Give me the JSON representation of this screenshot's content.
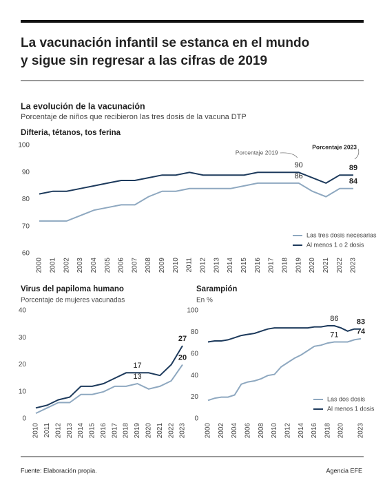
{
  "header": {
    "title_lines": [
      "La vacunación infantil se estanca en el mundo",
      "y sigue sin regresar a las cifras de 2019"
    ],
    "section_title": "La evolución de la vacunación",
    "section_subtitle": "Porcentaje de niños que recibieron las tres dosis de la vacuna DTP"
  },
  "chart_data": [
    {
      "type": "line",
      "title": "Difteria, tétanos, tos ferina",
      "x": [
        2000,
        2001,
        2002,
        2003,
        2004,
        2005,
        2006,
        2007,
        2008,
        2009,
        2010,
        2011,
        2012,
        2013,
        2014,
        2015,
        2016,
        2017,
        2018,
        2019,
        2020,
        2021,
        2022,
        2023
      ],
      "xlim": [
        2000,
        2023
      ],
      "xticks": [
        2000,
        2001,
        2002,
        2003,
        2004,
        2005,
        2006,
        2007,
        2008,
        2009,
        2010,
        2011,
        2012,
        2013,
        2014,
        2015,
        2016,
        2017,
        2018,
        2019,
        2020,
        2021,
        2022,
        2023
      ],
      "ylim": [
        60,
        100
      ],
      "yticks": [
        60,
        70,
        80,
        90,
        100
      ],
      "grid": false,
      "legend": "lower-right",
      "annotations": [
        "Porcentaje 2019",
        "Porcentaje 2023"
      ],
      "series": [
        {
          "name": "Las tres dosis necesarias",
          "color": "#8ea8c0",
          "values": [
            72,
            72,
            72,
            74,
            76,
            77,
            78,
            78,
            81,
            83,
            83,
            84,
            84,
            84,
            84,
            85,
            86,
            86,
            86,
            86,
            83,
            81,
            84,
            84
          ]
        },
        {
          "name": "Al menos 1 o 2 dosis",
          "color": "#1d3a5c",
          "values": [
            82,
            83,
            83,
            84,
            85,
            86,
            87,
            87,
            88,
            89,
            89,
            90,
            89,
            89,
            89,
            89,
            90,
            90,
            90,
            90,
            88,
            86,
            89,
            89
          ]
        }
      ]
    },
    {
      "type": "line",
      "title": "Virus del papiloma humano",
      "subtitle": "Porcentaje de mujeres vacunadas",
      "x": [
        2010,
        2011,
        2012,
        2013,
        2014,
        2015,
        2016,
        2017,
        2018,
        2019,
        2020,
        2021,
        2022,
        2023
      ],
      "xlim": [
        2010,
        2023
      ],
      "xticks": [
        2010,
        2011,
        2012,
        2013,
        2014,
        2015,
        2016,
        2017,
        2018,
        2019,
        2020,
        2021,
        2022,
        2023
      ],
      "ylim": [
        0,
        40
      ],
      "yticks": [
        0,
        10,
        20,
        30,
        40
      ],
      "grid": false,
      "series": [
        {
          "color": "#8ea8c0",
          "values": [
            2,
            4,
            6,
            6,
            9,
            9,
            10,
            12,
            12,
            13,
            11,
            12,
            14,
            20
          ]
        },
        {
          "color": "#1d3a5c",
          "values": [
            4,
            5,
            7,
            8,
            12,
            12,
            13,
            15,
            17,
            17,
            17,
            16,
            20,
            27
          ]
        }
      ]
    },
    {
      "type": "line",
      "title": "Sarampión",
      "subtitle": "En %",
      "x": [
        2000,
        2001,
        2002,
        2003,
        2004,
        2005,
        2006,
        2007,
        2008,
        2009,
        2010,
        2011,
        2012,
        2013,
        2014,
        2015,
        2016,
        2017,
        2018,
        2019,
        2020,
        2021,
        2022,
        2023
      ],
      "xlim": [
        2000,
        2023
      ],
      "xticks": [
        2000,
        2002,
        2004,
        2006,
        2008,
        2010,
        2012,
        2014,
        2016,
        2018,
        2020,
        2023
      ],
      "ylim": [
        0,
        100
      ],
      "yticks": [
        0,
        20,
        40,
        60,
        80,
        100
      ],
      "grid": false,
      "legend": "lower-right",
      "series": [
        {
          "name": "Las dos dosis",
          "color": "#8ea8c0",
          "values": [
            17,
            19,
            20,
            20,
            22,
            32,
            34,
            35,
            37,
            40,
            41,
            48,
            52,
            56,
            59,
            63,
            67,
            68,
            70,
            71,
            71,
            71,
            73,
            74
          ]
        },
        {
          "name": "Al menos 1 dosis",
          "color": "#1d3a5c",
          "values": [
            71,
            72,
            72,
            73,
            75,
            77,
            78,
            79,
            81,
            83,
            84,
            84,
            84,
            84,
            84,
            84,
            85,
            85,
            86,
            86,
            84,
            81,
            83,
            83
          ]
        }
      ]
    }
  ],
  "footer": {
    "source": "Fuente: Elaboración propia.",
    "credit": "Agencia EFE"
  }
}
